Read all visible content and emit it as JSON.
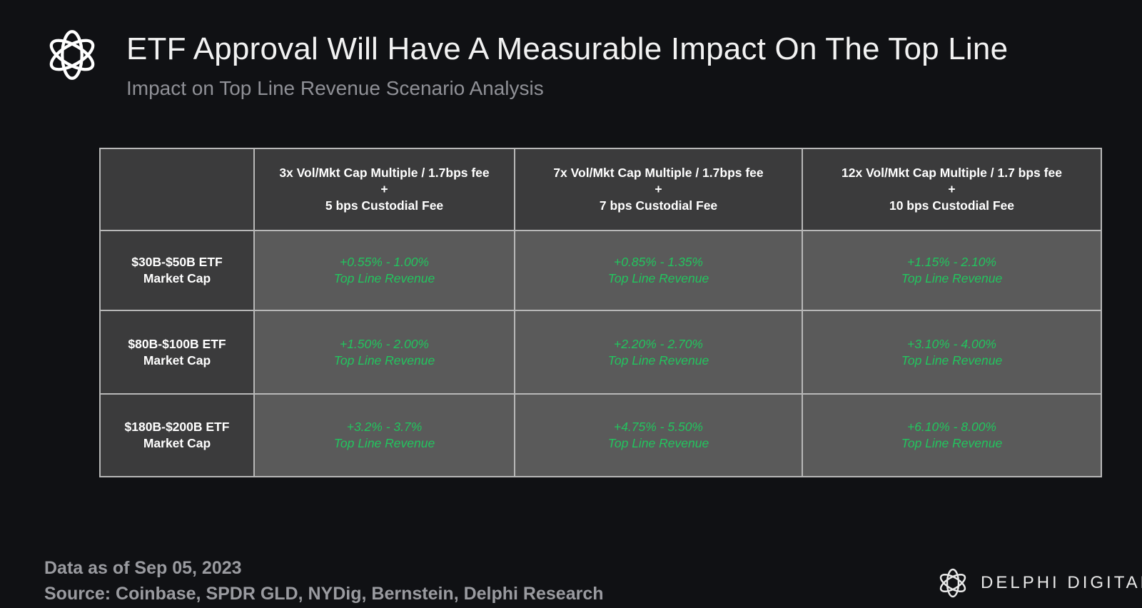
{
  "title": "ETF Approval Will Have A Measurable Impact On The Top Line",
  "subtitle": "Impact on Top Line Revenue Scenario Analysis",
  "colors": {
    "background": "#101114",
    "header_cell": "#3b3b3c",
    "data_cell": "#5a5a5a",
    "value_text": "#22c55e",
    "border": "#b8b8b8"
  },
  "chart_data": {
    "type": "table",
    "columns": [
      {
        "line1": "3x Vol/Mkt Cap Multiple / 1.7bps fee",
        "line2": "+",
        "line3": "5 bps Custodial Fee"
      },
      {
        "line1": "7x Vol/Mkt Cap Multiple / 1.7bps fee",
        "line2": "+",
        "line3": "7 bps Custodial Fee"
      },
      {
        "line1": "12x Vol/Mkt Cap Multiple / 1.7 bps fee",
        "line2": "+",
        "line3": "10 bps Custodial Fee"
      }
    ],
    "rows": [
      {
        "label1": "$30B-$50B ETF",
        "label2": "Market Cap",
        "cells": [
          {
            "value": "+0.55% - 1.00%",
            "unit": "Top Line Revenue"
          },
          {
            "value": "+0.85% - 1.35%",
            "unit": "Top Line Revenue"
          },
          {
            "value": "+1.15% - 2.10%",
            "unit": "Top Line Revenue"
          }
        ]
      },
      {
        "label1": "$80B-$100B ETF",
        "label2": "Market Cap",
        "cells": [
          {
            "value": "+1.50% - 2.00%",
            "unit": "Top Line Revenue"
          },
          {
            "value": "+2.20% - 2.70%",
            "unit": "Top Line Revenue"
          },
          {
            "value": "+3.10% - 4.00%",
            "unit": "Top Line Revenue"
          }
        ]
      },
      {
        "label1": "$180B-$200B ETF",
        "label2": "Market Cap",
        "cells": [
          {
            "value": "+3.2% - 3.7%",
            "unit": "Top Line Revenue"
          },
          {
            "value": "+4.75% - 5.50%",
            "unit": "Top Line Revenue"
          },
          {
            "value": "+6.10% - 8.00%",
            "unit": "Top Line Revenue"
          }
        ]
      }
    ]
  },
  "footer": {
    "date": "Data as of Sep 05, 2023",
    "source": "Source: Coinbase, SPDR GLD, NYDig, Bernstein, Delphi Research"
  },
  "brand": {
    "name": "DELPHI DIGITAL",
    "logo_icon": "delphi-knot-icon"
  }
}
